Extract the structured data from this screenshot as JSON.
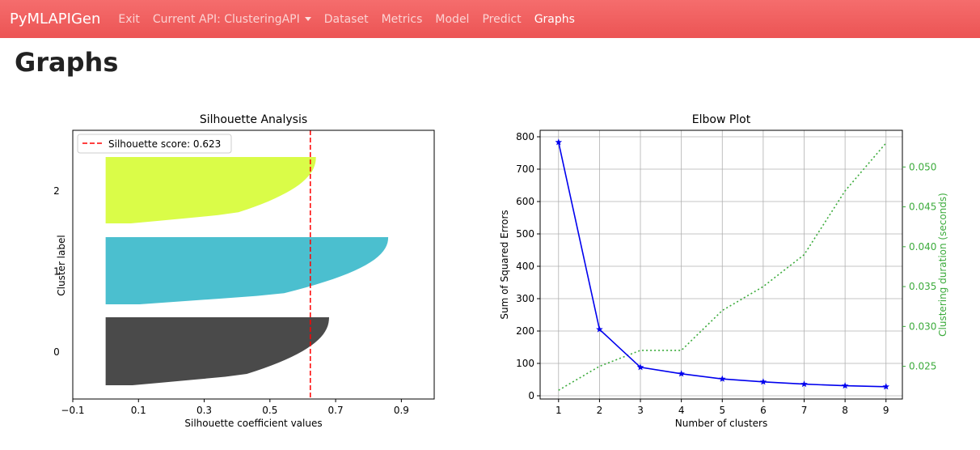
{
  "navbar": {
    "brand": "PyMLAPIGen",
    "items": [
      {
        "label": "Exit"
      },
      {
        "label": "Current API: ClusteringAPI"
      },
      {
        "label": "Dataset"
      },
      {
        "label": "Metrics"
      },
      {
        "label": "Model"
      },
      {
        "label": "Predict"
      },
      {
        "label": "Graphs"
      }
    ]
  },
  "page": {
    "title": "Graphs"
  },
  "chart_data": [
    {
      "type": "area",
      "title": "Silhouette Analysis",
      "xlabel": "Silhouette coefficient values",
      "ylabel": "Cluster label",
      "xlim": [
        -0.1,
        1.0
      ],
      "xticks": [
        -0.1,
        0.1,
        0.3,
        0.5,
        0.7,
        0.9
      ],
      "xtick_labels": [
        "−0.1",
        "0.1",
        "0.3",
        "0.5",
        "0.7",
        "0.9"
      ],
      "silhouette_score": 0.623,
      "legend": {
        "label": "Silhouette score: 0.623",
        "position": "top-left"
      },
      "clusters": [
        {
          "label": "0",
          "color": "#4a4a4a",
          "max_value": 0.68
        },
        {
          "label": "1",
          "color": "#4bbfcf",
          "max_value": 0.86
        },
        {
          "label": "2",
          "color": "#dafc48",
          "max_value": 0.64
        }
      ]
    },
    {
      "type": "line",
      "title": "Elbow Plot",
      "xlabel": "Number of clusters",
      "ylabel": "Sum of Squared Errors",
      "y2label": "Clustering duration (seconds)",
      "x": [
        1,
        2,
        3,
        4,
        5,
        6,
        7,
        8,
        9
      ],
      "ylim": [
        -10,
        820
      ],
      "yticks": [
        0,
        100,
        200,
        300,
        400,
        500,
        600,
        700,
        800
      ],
      "y2lim": [
        0.0209,
        0.0546
      ],
      "y2ticks": [
        0.025,
        0.03,
        0.035,
        0.04,
        0.045,
        0.05
      ],
      "y2tick_labels": [
        "0.025",
        "0.030",
        "0.035",
        "0.040",
        "0.045",
        "0.050"
      ],
      "grid": true,
      "series": [
        {
          "axis": "left",
          "color": "#0000ee",
          "style": "solid-star",
          "values": [
            783,
            205,
            88,
            68,
            52,
            43,
            36,
            31,
            28
          ]
        },
        {
          "axis": "right",
          "color": "#3cab3c",
          "style": "dotted",
          "values": [
            0.022,
            0.025,
            0.027,
            0.027,
            0.032,
            0.035,
            0.039,
            0.047,
            0.053
          ]
        }
      ]
    }
  ]
}
